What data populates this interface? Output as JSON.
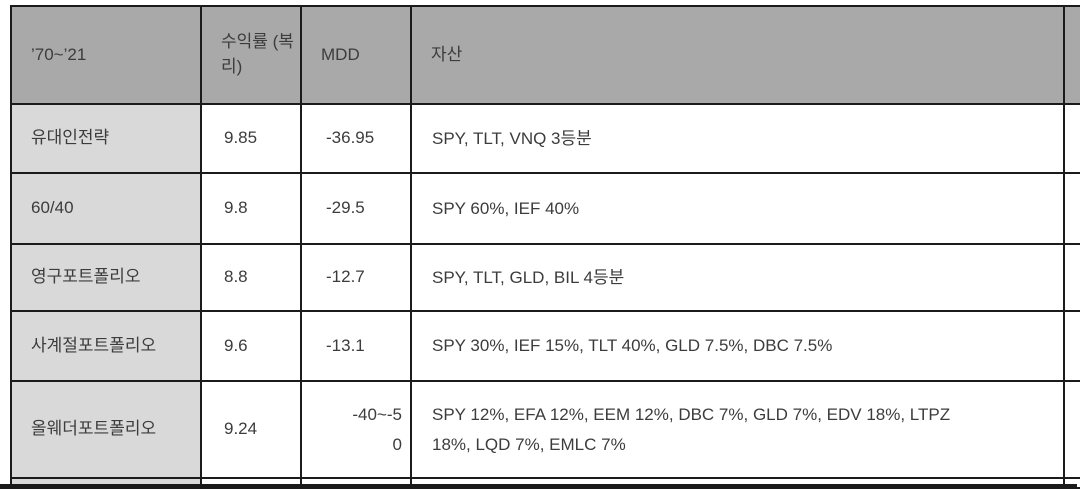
{
  "table": {
    "columns": {
      "period": "’70~’21",
      "return": "수익률 (복리)",
      "mdd": "MDD",
      "assets": "자산"
    },
    "rows": [
      {
        "name": "유대인전략",
        "cagr": "9.85",
        "mdd": "-36.95",
        "assets": "SPY, TLT, VNQ 3등분"
      },
      {
        "name": "60/40",
        "cagr": "9.8",
        "mdd": "-29.5",
        "assets": "SPY 60%, IEF 40%"
      },
      {
        "name": "영구포트폴리오",
        "cagr": "8.8",
        "mdd": "-12.7",
        "assets": "SPY, TLT, GLD, BIL 4등분"
      },
      {
        "name": "사계절포트폴리오",
        "cagr": "9.6",
        "mdd": "-13.1",
        "assets": "SPY 30%, IEF 15%, TLT 40%, GLD 7.5%, DBC 7.5%"
      },
      {
        "name": "올웨더포트폴리오",
        "cagr": "9.24",
        "mdd": "-40~-50",
        "mdd_wrap": true,
        "assets": "SPY 12%, EFA 12%, EEM 12%, DBC 7%, GLD 7%, EDV 18%, LTPZ 18%, LQD 7%, EMLC 7%"
      }
    ]
  },
  "colors": {
    "header_bg": "#a9a9a9",
    "rowhead_bg": "#d9d9d9",
    "border": "#1b1b1b",
    "text": "#3c3c3c",
    "bottom_bar": "#1a1a1a",
    "page_bg": "#ffffff"
  }
}
